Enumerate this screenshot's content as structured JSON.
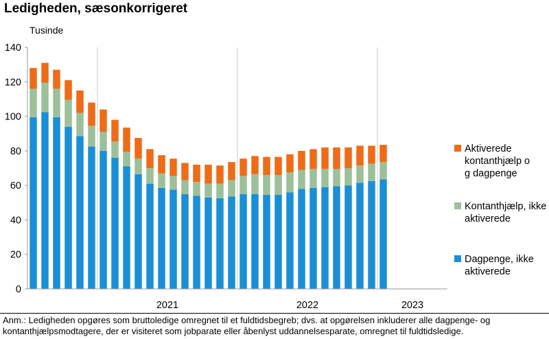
{
  "title": "Ledigheden, sæsonkorrigeret",
  "unit_label": "Tusinde",
  "note": "Anm.: Ledigheden opgøres som bruttoledige omregnet til et fuldtidsbegreb; dvs. at opgørelsen inkluderer alle dagpenge- og kontanthjælpsmodtagere, der er visiteret som jobparate eller åbenlyst uddannelsesparate, omregnet til fuldtidsledige.",
  "chart_data": {
    "type": "bar",
    "stacked": true,
    "ylim": [
      0,
      140
    ],
    "yticks": [
      0,
      20,
      40,
      60,
      80,
      100,
      120,
      140
    ],
    "year_labels": [
      "2021",
      "2022",
      "2023"
    ],
    "categories": [
      "2020-07",
      "2020-08",
      "2020-09",
      "2020-10",
      "2020-11",
      "2020-12",
      "2021-01",
      "2021-02",
      "2021-03",
      "2021-04",
      "2021-05",
      "2021-06",
      "2021-07",
      "2021-08",
      "2021-09",
      "2021-10",
      "2021-11",
      "2021-12",
      "2022-01",
      "2022-02",
      "2022-03",
      "2022-04",
      "2022-05",
      "2022-06",
      "2022-07",
      "2022-08",
      "2022-09",
      "2022-10",
      "2022-11",
      "2022-12",
      "2023-01",
      "2023-02",
      "2023-03",
      "2023-04",
      "2023-05",
      "2023-06"
    ],
    "grid": "vertical year separators",
    "legend_position": "right",
    "series": [
      {
        "name": "Dagpenge, ikke aktiverede",
        "color": "#1a8fd6",
        "values": [
          99.5,
          102.5,
          99.5,
          94,
          88.5,
          82.5,
          80,
          76,
          71,
          66.5,
          61,
          58.5,
          57.5,
          55,
          54,
          53,
          52.5,
          53.5,
          55,
          55,
          54.5,
          54.5,
          56,
          58,
          58.5,
          59,
          59.5,
          60,
          61.5,
          62.5,
          63.5,
          null,
          null,
          null,
          null,
          null
        ]
      },
      {
        "name": "Kontanthjælp, ikke aktiverede",
        "color": "#9cc09a",
        "values": [
          16.5,
          17,
          16.5,
          15.5,
          13.5,
          12,
          11,
          9.5,
          8.5,
          9,
          9,
          8.5,
          8,
          8,
          8,
          8,
          8.5,
          9.5,
          10.5,
          11.5,
          11.5,
          11.5,
          11.5,
          11,
          11,
          10.5,
          10,
          10,
          10,
          10,
          10,
          null,
          null,
          null,
          null,
          null
        ]
      },
      {
        "name": "Aktiverede kontanthjælp og dagpenge",
        "color": "#ee6c17",
        "values": [
          12,
          11.5,
          11,
          11.5,
          13,
          13.5,
          13,
          12.5,
          14,
          12,
          11,
          10.5,
          10,
          10,
          10,
          11,
          10.5,
          10.5,
          10,
          10.5,
          10.5,
          10.5,
          10.5,
          11,
          11.5,
          12.5,
          12.5,
          12,
          11.5,
          10.5,
          10,
          null,
          null,
          null,
          null,
          null
        ]
      }
    ]
  }
}
